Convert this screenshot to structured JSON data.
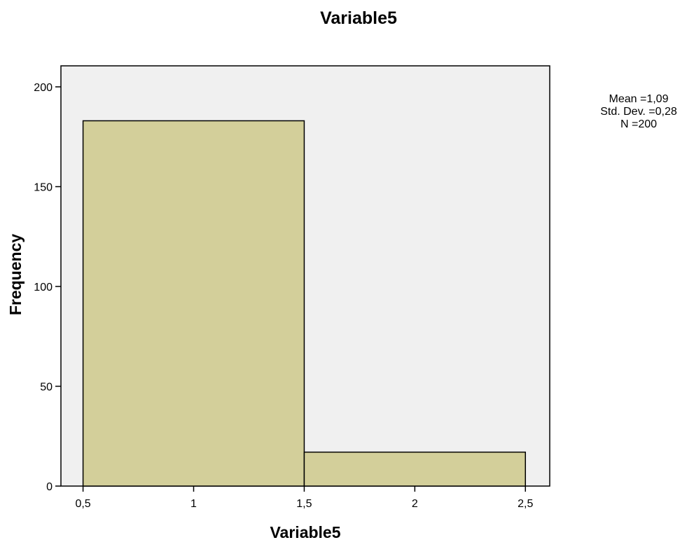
{
  "chart_data": {
    "type": "bar",
    "title": "Variable5",
    "xlabel": "Variable5",
    "ylabel": "Frequency",
    "bins": [
      {
        "x_start": 0.5,
        "x_end": 1.5,
        "count": 183
      },
      {
        "x_start": 1.5,
        "x_end": 2.5,
        "count": 17
      }
    ],
    "xlim": [
      0.4,
      2.61
    ],
    "ylim": [
      0,
      200
    ],
    "x_ticks": [
      0.5,
      1,
      1.5,
      2,
      2.5
    ],
    "x_tick_labels": [
      "0,5",
      "1",
      "1,5",
      "2",
      "2,5"
    ],
    "y_ticks": [
      0,
      50,
      100,
      150,
      200
    ],
    "y_tick_labels": [
      "0",
      "50",
      "100",
      "150",
      "200"
    ],
    "grid": false,
    "stats": {
      "mean": "Mean =1,09",
      "std_dev": "Std. Dev. =0,28",
      "n": "N =200"
    },
    "colors": {
      "bar_fill": "#d3cf9a",
      "plot_background": "#f0f0f0",
      "stroke": "#000000"
    }
  }
}
